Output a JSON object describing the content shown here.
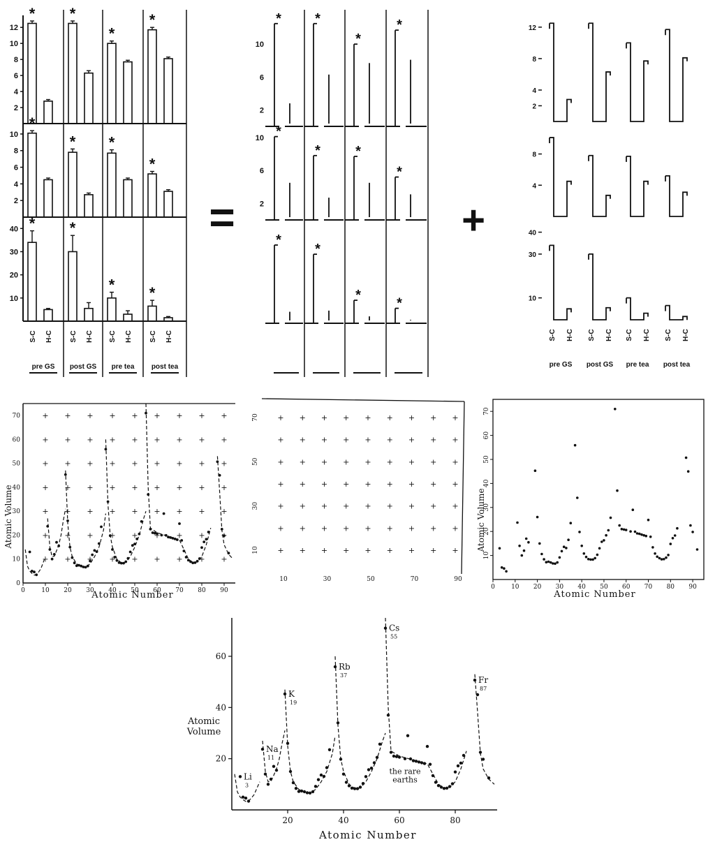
{
  "operators": {
    "equals": "=",
    "plus": "+"
  },
  "chart_data": [
    {
      "type": "bar",
      "panel": "left",
      "star": "*",
      "categories": [
        "S-C",
        "H-C"
      ],
      "groups": [
        "pre GS",
        "post GS",
        "pre tea",
        "post tea"
      ],
      "rows": [
        {
          "yticks": [
            2,
            4,
            6,
            8,
            10,
            12
          ],
          "ylim": [
            0,
            13.5
          ],
          "values": [
            [
              12.5,
              2.8
            ],
            [
              12.5,
              6.3
            ],
            [
              10.0,
              7.7
            ],
            [
              11.7,
              8.1
            ]
          ],
          "errors": [
            [
              0.3,
              0.2
            ],
            [
              0.3,
              0.3
            ],
            [
              0.3,
              0.2
            ],
            [
              0.3,
              0.2
            ]
          ],
          "starred": [
            true,
            true,
            true,
            true
          ]
        },
        {
          "yticks": [
            2,
            4,
            6,
            8,
            10
          ],
          "ylim": [
            0,
            11
          ],
          "values": [
            [
              10.1,
              4.5
            ],
            [
              7.8,
              2.7
            ],
            [
              7.7,
              4.5
            ],
            [
              5.2,
              3.1
            ]
          ],
          "errors": [
            [
              0.3,
              0.2
            ],
            [
              0.4,
              0.2
            ],
            [
              0.4,
              0.2
            ],
            [
              0.3,
              0.2
            ]
          ],
          "starred": [
            true,
            true,
            true,
            true
          ]
        },
        {
          "yticks": [
            10,
            20,
            30,
            40
          ],
          "ylim": [
            0,
            44
          ],
          "values": [
            [
              34,
              5
            ],
            [
              30,
              5.5
            ],
            [
              10,
              3
            ],
            [
              6.5,
              1.5
            ]
          ],
          "errors": [
            [
              5,
              0.5
            ],
            [
              7,
              2.5
            ],
            [
              2.5,
              1.5
            ],
            [
              2.5,
              0.5
            ]
          ],
          "starred": [
            true,
            true,
            true,
            true
          ]
        }
      ]
    },
    {
      "type": "bar",
      "panel": "middle",
      "star": "*",
      "rows": [
        {
          "yticks": [
            2,
            6,
            10
          ],
          "ylim": [
            0,
            13.5
          ],
          "values": [
            [
              12.5,
              2.8
            ],
            [
              12.5,
              6.3
            ],
            [
              10.0,
              7.7
            ],
            [
              11.7,
              8.1
            ]
          ]
        },
        {
          "yticks": [
            2,
            6,
            10
          ],
          "ylim": [
            0,
            11
          ],
          "values": [
            [
              10.1,
              4.5
            ],
            [
              7.8,
              2.7
            ],
            [
              7.7,
              4.5
            ],
            [
              5.2,
              3.1
            ]
          ]
        },
        {
          "yticks": [],
          "ylim": [
            0,
            44
          ],
          "values": [
            [
              34,
              5
            ],
            [
              30,
              5.5
            ],
            [
              10,
              3
            ],
            [
              6.5,
              1.5
            ]
          ]
        }
      ]
    },
    {
      "type": "bar",
      "panel": "right",
      "categories": [
        "S-C",
        "H-C"
      ],
      "groups": [
        "pre GS",
        "post GS",
        "pre tea",
        "post tea"
      ],
      "rows": [
        {
          "yticks": [
            2,
            4,
            8,
            12
          ],
          "ylim": [
            0,
            13.5
          ],
          "values": [
            [
              12.5,
              2.8
            ],
            [
              12.5,
              6.3
            ],
            [
              10.0,
              7.7
            ],
            [
              11.7,
              8.1
            ]
          ]
        },
        {
          "yticks": [
            4,
            8
          ],
          "ylim": [
            0,
            11
          ],
          "values": [
            [
              10.1,
              4.5
            ],
            [
              7.8,
              2.7
            ],
            [
              7.7,
              4.5
            ],
            [
              5.2,
              3.1
            ]
          ]
        },
        {
          "yticks": [
            10,
            30,
            40
          ],
          "ylim": [
            0,
            44
          ],
          "values": [
            [
              34,
              5
            ],
            [
              30,
              5.5
            ],
            [
              10,
              3
            ],
            [
              6.5,
              1.5
            ]
          ]
        }
      ]
    },
    {
      "type": "line",
      "panel": "atomic-volume-gridded",
      "xlabel": "Atomic Number",
      "ylabel": "Atomic Volume",
      "xlim": [
        0,
        95
      ],
      "ylim": [
        0,
        75
      ],
      "xticks": [
        0,
        10,
        20,
        30,
        40,
        50,
        60,
        70,
        80,
        90
      ],
      "yticks": [
        0,
        10,
        20,
        30,
        40,
        50,
        60,
        70
      ]
    },
    {
      "type": "scatter",
      "panel": "grid-only",
      "xticks": [
        10,
        30,
        50,
        70,
        90
      ],
      "yticks": [
        10,
        30,
        50,
        70
      ]
    },
    {
      "type": "scatter",
      "panel": "atomic-volume-points",
      "xlabel": "Atomic Number",
      "ylabel": "Atomic Volume",
      "xlim": [
        0,
        95
      ],
      "ylim": [
        0,
        75
      ],
      "xticks": [
        0,
        10,
        20,
        30,
        40,
        50,
        60,
        70,
        80,
        90
      ],
      "yticks": [
        10,
        20,
        30,
        40,
        50,
        60,
        70
      ]
    },
    {
      "type": "line",
      "panel": "atomic-volume-labeled",
      "xlabel": "Atomic Number",
      "ylabel": "Atomic\nVolume",
      "xlim": [
        0,
        95
      ],
      "ylim": [
        0,
        75
      ],
      "xticks": [
        20,
        40,
        60,
        80
      ],
      "yticks": [
        20,
        40,
        60
      ],
      "annotations": [
        {
          "label": "Li",
          "sub": "3",
          "x": 3,
          "y": 13
        },
        {
          "label": "Na",
          "sub": "11",
          "x": 11,
          "y": 23.7
        },
        {
          "label": "K",
          "sub": "19",
          "x": 19,
          "y": 45.3
        },
        {
          "label": "Rb",
          "sub": "37",
          "x": 37,
          "y": 55.9
        },
        {
          "label": "Cs",
          "sub": "55",
          "x": 55,
          "y": 71
        },
        {
          "label": "Fr",
          "sub": "87",
          "x": 87,
          "y": 50.7
        },
        {
          "label": "the rare\nearths",
          "x": 62,
          "y": 14
        }
      ]
    }
  ],
  "atomic_volumes": {
    "points": [
      [
        3,
        13
      ],
      [
        4,
        5
      ],
      [
        5,
        4.6
      ],
      [
        6,
        3.4
      ],
      [
        11,
        23.7
      ],
      [
        12,
        14
      ],
      [
        13,
        10
      ],
      [
        14,
        12
      ],
      [
        15,
        17
      ],
      [
        16,
        15.5
      ],
      [
        19,
        45.3
      ],
      [
        20,
        26
      ],
      [
        21,
        15
      ],
      [
        22,
        10.6
      ],
      [
        23,
        8.4
      ],
      [
        24,
        7.2
      ],
      [
        25,
        7.4
      ],
      [
        26,
        7.1
      ],
      [
        27,
        6.7
      ],
      [
        28,
        6.6
      ],
      [
        29,
        7.1
      ],
      [
        30,
        9.2
      ],
      [
        31,
        11.8
      ],
      [
        32,
        13.6
      ],
      [
        33,
        13.1
      ],
      [
        34,
        16.5
      ],
      [
        35,
        23.5
      ],
      [
        37,
        55.9
      ],
      [
        38,
        34
      ],
      [
        39,
        19.8
      ],
      [
        40,
        14
      ],
      [
        41,
        10.8
      ],
      [
        42,
        9.4
      ],
      [
        43,
        8.5
      ],
      [
        44,
        8.3
      ],
      [
        45,
        8.3
      ],
      [
        46,
        8.9
      ],
      [
        47,
        10.3
      ],
      [
        48,
        13
      ],
      [
        49,
        15.7
      ],
      [
        50,
        16.3
      ],
      [
        51,
        18.4
      ],
      [
        52,
        20.5
      ],
      [
        53,
        25.7
      ],
      [
        55,
        71
      ],
      [
        56,
        37
      ],
      [
        57,
        22.5
      ],
      [
        58,
        21
      ],
      [
        59,
        20.8
      ],
      [
        60,
        20.6
      ],
      [
        62,
        20
      ],
      [
        63,
        29
      ],
      [
        64,
        19.9
      ],
      [
        65,
        19.2
      ],
      [
        66,
        19
      ],
      [
        67,
        18.7
      ],
      [
        68,
        18.4
      ],
      [
        69,
        18.1
      ],
      [
        70,
        24.8
      ],
      [
        71,
        17.8
      ],
      [
        72,
        13.4
      ],
      [
        73,
        10.8
      ],
      [
        74,
        9.5
      ],
      [
        75,
        8.9
      ],
      [
        76,
        8.4
      ],
      [
        77,
        8.5
      ],
      [
        78,
        9.1
      ],
      [
        79,
        10.2
      ],
      [
        80,
        14.8
      ],
      [
        81,
        17.2
      ],
      [
        82,
        18.3
      ],
      [
        83,
        21.3
      ],
      [
        87,
        50.7
      ],
      [
        88,
        45
      ],
      [
        89,
        22.5
      ],
      [
        90,
        19.8
      ],
      [
        92,
        12.5
      ]
    ],
    "curve_segments": [
      [
        [
          1,
          14
        ],
        [
          2,
          7
        ],
        [
          3,
          5
        ],
        [
          4,
          4
        ],
        [
          5,
          3.3
        ],
        [
          6,
          3.5
        ],
        [
          7,
          4.6
        ],
        [
          8,
          6
        ],
        [
          9,
          8.5
        ],
        [
          10,
          11
        ]
      ],
      [
        [
          11,
          27
        ],
        [
          12,
          15
        ],
        [
          13,
          11
        ],
        [
          14,
          11.2
        ],
        [
          15,
          13.5
        ],
        [
          16,
          16
        ],
        [
          17,
          20
        ],
        [
          18,
          26
        ],
        [
          19,
          31
        ]
      ],
      [
        [
          19,
          47
        ],
        [
          20,
          25
        ],
        [
          21,
          15
        ],
        [
          22,
          11
        ],
        [
          24,
          8
        ],
        [
          26,
          7
        ],
        [
          28,
          6.6
        ],
        [
          30,
          8
        ],
        [
          32,
          11
        ],
        [
          34,
          15
        ],
        [
          36,
          22
        ],
        [
          37,
          29
        ]
      ],
      [
        [
          37,
          60
        ],
        [
          38,
          33
        ],
        [
          39,
          20
        ],
        [
          40,
          15
        ],
        [
          42,
          10
        ],
        [
          44,
          8.4
        ],
        [
          46,
          8.6
        ],
        [
          48,
          11
        ],
        [
          50,
          15
        ],
        [
          52,
          20
        ],
        [
          54,
          27
        ],
        [
          55,
          30
        ]
      ],
      [
        [
          55,
          75
        ],
        [
          56,
          40
        ],
        [
          57,
          23
        ],
        [
          60,
          21
        ],
        [
          65,
          19.5
        ],
        [
          70,
          18
        ],
        [
          72,
          14
        ],
        [
          74,
          10
        ],
        [
          76,
          8.5
        ],
        [
          78,
          8.8
        ],
        [
          80,
          11
        ],
        [
          82,
          16
        ],
        [
          84,
          23
        ]
      ],
      [
        [
          87,
          53
        ],
        [
          88,
          38
        ],
        [
          89,
          22
        ],
        [
          90,
          16
        ],
        [
          92,
          12
        ],
        [
          94,
          10
        ]
      ]
    ]
  }
}
